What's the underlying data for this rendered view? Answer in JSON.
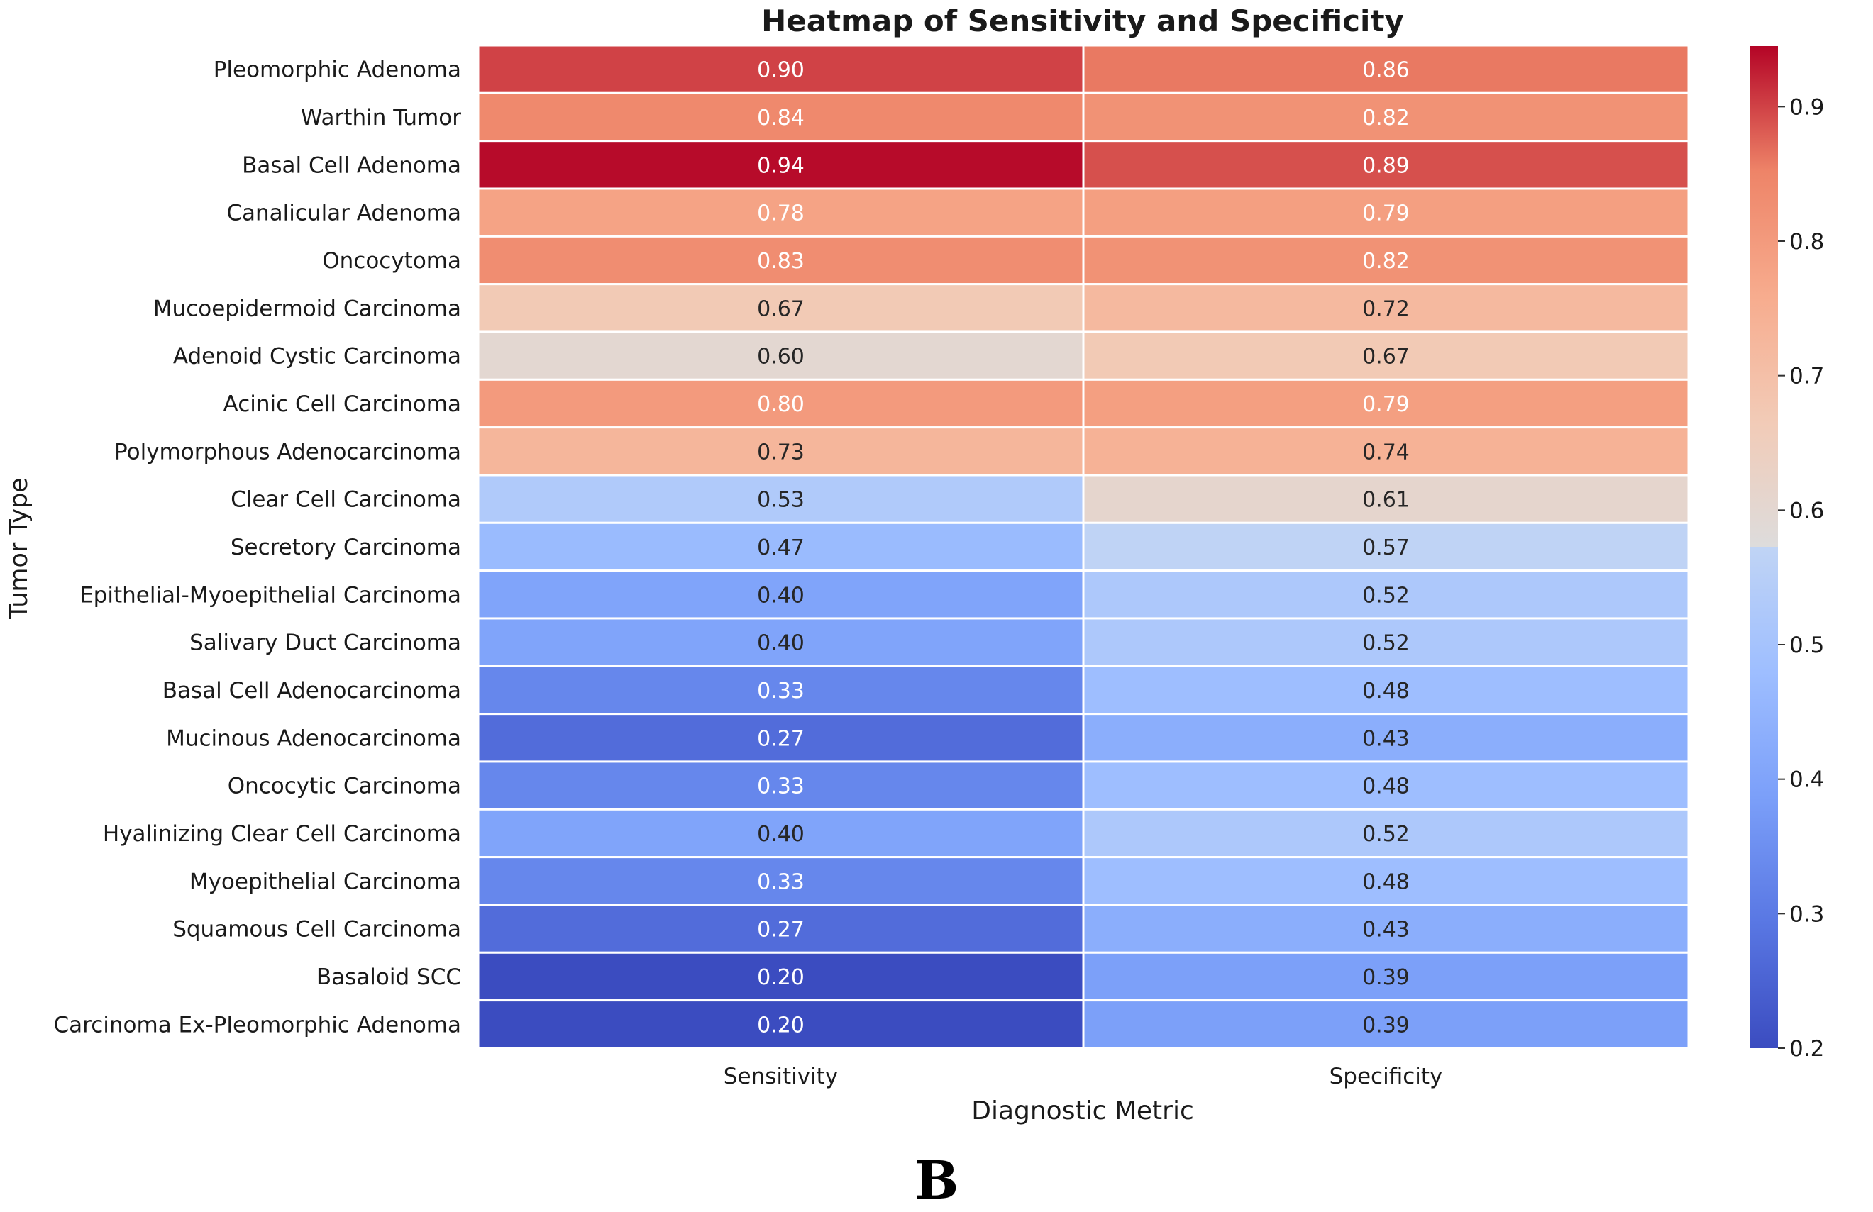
{
  "chart_data": {
    "type": "heatmap",
    "title": "Heatmap of Sensitivity and Specificity",
    "xlabel": "Diagnostic Metric",
    "ylabel": "Tumor Type",
    "columns": [
      "Sensitivity",
      "Specificity"
    ],
    "rows": [
      "Pleomorphic Adenoma",
      "Warthin Tumor",
      "Basal Cell Adenoma",
      "Canalicular Adenoma",
      "Oncocytoma",
      "Mucoepidermoid Carcinoma",
      "Adenoid Cystic Carcinoma",
      "Acinic Cell Carcinoma",
      "Polymorphous Adenocarcinoma",
      "Clear Cell Carcinoma",
      "Secretory Carcinoma",
      "Epithelial-Myoepithelial Carcinoma",
      "Salivary Duct Carcinoma",
      "Basal Cell Adenocarcinoma",
      "Mucinous Adenocarcinoma",
      "Oncocytic Carcinoma",
      "Hyalinizing Clear Cell Carcinoma",
      "Myoepithelial Carcinoma",
      "Squamous Cell Carcinoma",
      "Basaloid SCC",
      "Carcinoma Ex-Pleomorphic Adenoma"
    ],
    "values": [
      [
        0.9,
        0.86
      ],
      [
        0.84,
        0.82
      ],
      [
        0.94,
        0.89
      ],
      [
        0.78,
        0.79
      ],
      [
        0.83,
        0.82
      ],
      [
        0.67,
        0.72
      ],
      [
        0.6,
        0.67
      ],
      [
        0.8,
        0.79
      ],
      [
        0.73,
        0.74
      ],
      [
        0.53,
        0.61
      ],
      [
        0.47,
        0.57
      ],
      [
        0.4,
        0.52
      ],
      [
        0.4,
        0.52
      ],
      [
        0.33,
        0.48
      ],
      [
        0.27,
        0.43
      ],
      [
        0.33,
        0.48
      ],
      [
        0.4,
        0.52
      ],
      [
        0.33,
        0.48
      ],
      [
        0.27,
        0.43
      ],
      [
        0.2,
        0.39
      ],
      [
        0.2,
        0.39
      ]
    ],
    "colormap": "coolwarm",
    "vmin": 0.2,
    "vmax": 0.945,
    "colorbar_ticks": [
      "0.2",
      "0.3",
      "0.4",
      "0.5",
      "0.6",
      "0.7",
      "0.8",
      "0.9"
    ],
    "colorbar_tick_values": [
      0.2,
      0.3,
      0.4,
      0.5,
      0.6,
      0.7,
      0.8,
      0.9
    ]
  },
  "panel_label": "B"
}
